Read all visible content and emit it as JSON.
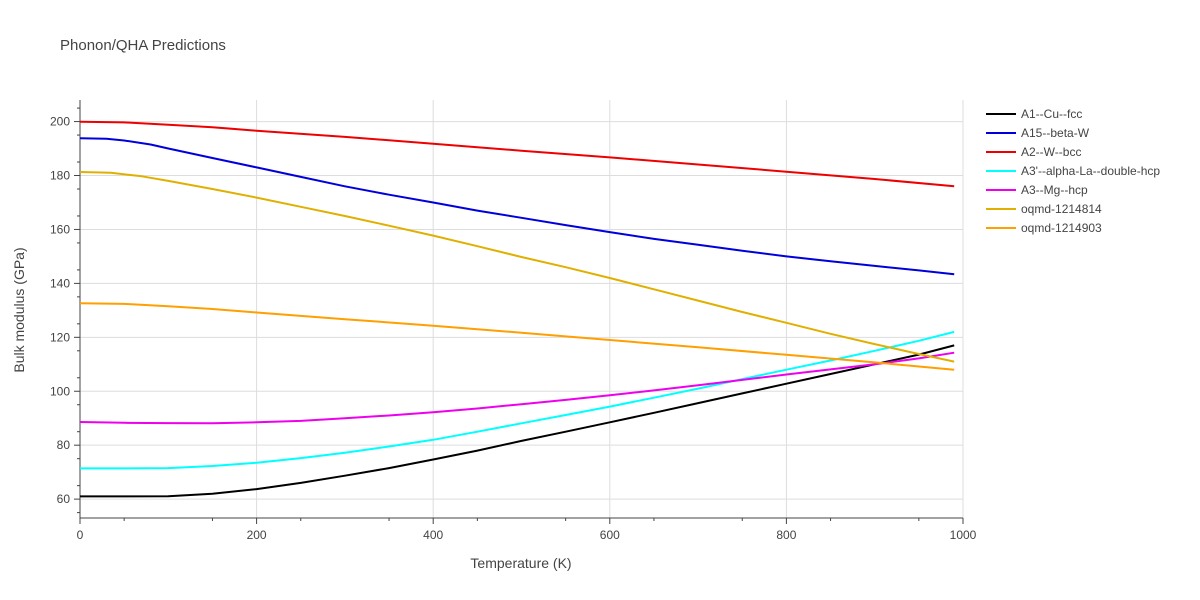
{
  "chart_data": {
    "type": "line",
    "title": "Phonon/QHA Predictions",
    "xlabel": "Temperature (K)",
    "ylabel": "Bulk modulus (GPa)",
    "xlim": [
      0,
      1000
    ],
    "ylim": [
      53,
      208
    ],
    "xticks": [
      0,
      200,
      400,
      600,
      800,
      1000
    ],
    "yticks": [
      60,
      80,
      100,
      120,
      140,
      160,
      180,
      200
    ],
    "grid": true,
    "legend_position": "top-right",
    "series": [
      {
        "name": "A1--Cu--fcc",
        "color": "#000000",
        "points": [
          [
            0,
            61
          ],
          [
            50,
            61
          ],
          [
            100,
            61.1
          ],
          [
            150,
            62
          ],
          [
            200,
            63.7
          ],
          [
            250,
            66
          ],
          [
            300,
            68.7
          ],
          [
            350,
            71.5
          ],
          [
            400,
            74.7
          ],
          [
            450,
            78
          ],
          [
            500,
            81.6
          ],
          [
            550,
            85
          ],
          [
            600,
            88.5
          ],
          [
            650,
            92
          ],
          [
            700,
            95.6
          ],
          [
            750,
            99.2
          ],
          [
            800,
            102.8
          ],
          [
            850,
            106.4
          ],
          [
            900,
            110
          ],
          [
            950,
            113.6
          ],
          [
            990,
            117
          ]
        ]
      },
      {
        "name": "A15--beta-W",
        "color": "#0000dd",
        "points": [
          [
            0,
            193.8
          ],
          [
            30,
            193.6
          ],
          [
            50,
            193
          ],
          [
            80,
            191.5
          ],
          [
            100,
            190
          ],
          [
            150,
            186.5
          ],
          [
            200,
            183
          ],
          [
            250,
            179.5
          ],
          [
            300,
            176
          ],
          [
            350,
            172.9
          ],
          [
            400,
            170
          ],
          [
            450,
            167
          ],
          [
            500,
            164.3
          ],
          [
            550,
            161.6
          ],
          [
            600,
            159
          ],
          [
            650,
            156.5
          ],
          [
            700,
            154.3
          ],
          [
            750,
            152.1
          ],
          [
            800,
            150
          ],
          [
            850,
            148.2
          ],
          [
            900,
            146.5
          ],
          [
            950,
            144.8
          ],
          [
            990,
            143.4
          ]
        ]
      },
      {
        "name": "A2--W--bcc",
        "color": "#ee0000",
        "points": [
          [
            0,
            199.9
          ],
          [
            50,
            199.7
          ],
          [
            100,
            198.8
          ],
          [
            150,
            197.9
          ],
          [
            200,
            196.6
          ],
          [
            300,
            194.3
          ],
          [
            400,
            191.8
          ],
          [
            500,
            189.2
          ],
          [
            600,
            186.7
          ],
          [
            700,
            184.1
          ],
          [
            800,
            181.4
          ],
          [
            900,
            178.7
          ],
          [
            990,
            176
          ]
        ]
      },
      {
        "name": "A3'--alpha-La--double-hcp",
        "color": "#00ffff",
        "points": [
          [
            0,
            71.4
          ],
          [
            50,
            71.4
          ],
          [
            100,
            71.5
          ],
          [
            150,
            72.3
          ],
          [
            200,
            73.5
          ],
          [
            250,
            75.2
          ],
          [
            300,
            77.2
          ],
          [
            350,
            79.5
          ],
          [
            400,
            82
          ],
          [
            450,
            85
          ],
          [
            500,
            88.1
          ],
          [
            550,
            91.2
          ],
          [
            600,
            94.3
          ],
          [
            650,
            97.6
          ],
          [
            700,
            101
          ],
          [
            750,
            104.5
          ],
          [
            800,
            108
          ],
          [
            850,
            111.4
          ],
          [
            900,
            115
          ],
          [
            950,
            118.7
          ],
          [
            990,
            122
          ]
        ]
      },
      {
        "name": "A3--Mg--hcp",
        "color": "#ee00ee",
        "points": [
          [
            0,
            88.6
          ],
          [
            50,
            88.3
          ],
          [
            100,
            88.2
          ],
          [
            150,
            88.1
          ],
          [
            200,
            88.5
          ],
          [
            250,
            89
          ],
          [
            300,
            90
          ],
          [
            350,
            91
          ],
          [
            400,
            92.2
          ],
          [
            450,
            93.6
          ],
          [
            500,
            95.2
          ],
          [
            550,
            96.8
          ],
          [
            600,
            98.5
          ],
          [
            650,
            100.3
          ],
          [
            700,
            102.2
          ],
          [
            750,
            104.2
          ],
          [
            800,
            106.2
          ],
          [
            850,
            108.1
          ],
          [
            900,
            110
          ],
          [
            950,
            112.2
          ],
          [
            990,
            114.3
          ]
        ]
      },
      {
        "name": "oqmd-1214814",
        "color": "#e0b000",
        "points": [
          [
            0,
            181.3
          ],
          [
            35,
            181
          ],
          [
            70,
            179.7
          ],
          [
            100,
            178
          ],
          [
            150,
            175
          ],
          [
            200,
            171.8
          ],
          [
            250,
            168.4
          ],
          [
            300,
            165
          ],
          [
            350,
            161.4
          ],
          [
            400,
            157.7
          ],
          [
            450,
            153.8
          ],
          [
            500,
            149.8
          ],
          [
            550,
            146
          ],
          [
            600,
            142
          ],
          [
            650,
            137.8
          ],
          [
            700,
            133.6
          ],
          [
            750,
            129.4
          ],
          [
            800,
            125.4
          ],
          [
            850,
            121.3
          ],
          [
            900,
            117.5
          ],
          [
            950,
            113.8
          ],
          [
            990,
            111
          ]
        ]
      },
      {
        "name": "oqmd-1214903",
        "color": "#ff9f00",
        "points": [
          [
            0,
            132.6
          ],
          [
            50,
            132.4
          ],
          [
            100,
            131.5
          ],
          [
            150,
            130.5
          ],
          [
            200,
            129.2
          ],
          [
            300,
            126.7
          ],
          [
            400,
            124.3
          ],
          [
            500,
            121.7
          ],
          [
            600,
            119
          ],
          [
            700,
            116.3
          ],
          [
            800,
            113.5
          ],
          [
            900,
            110.7
          ],
          [
            990,
            108
          ]
        ]
      }
    ]
  }
}
